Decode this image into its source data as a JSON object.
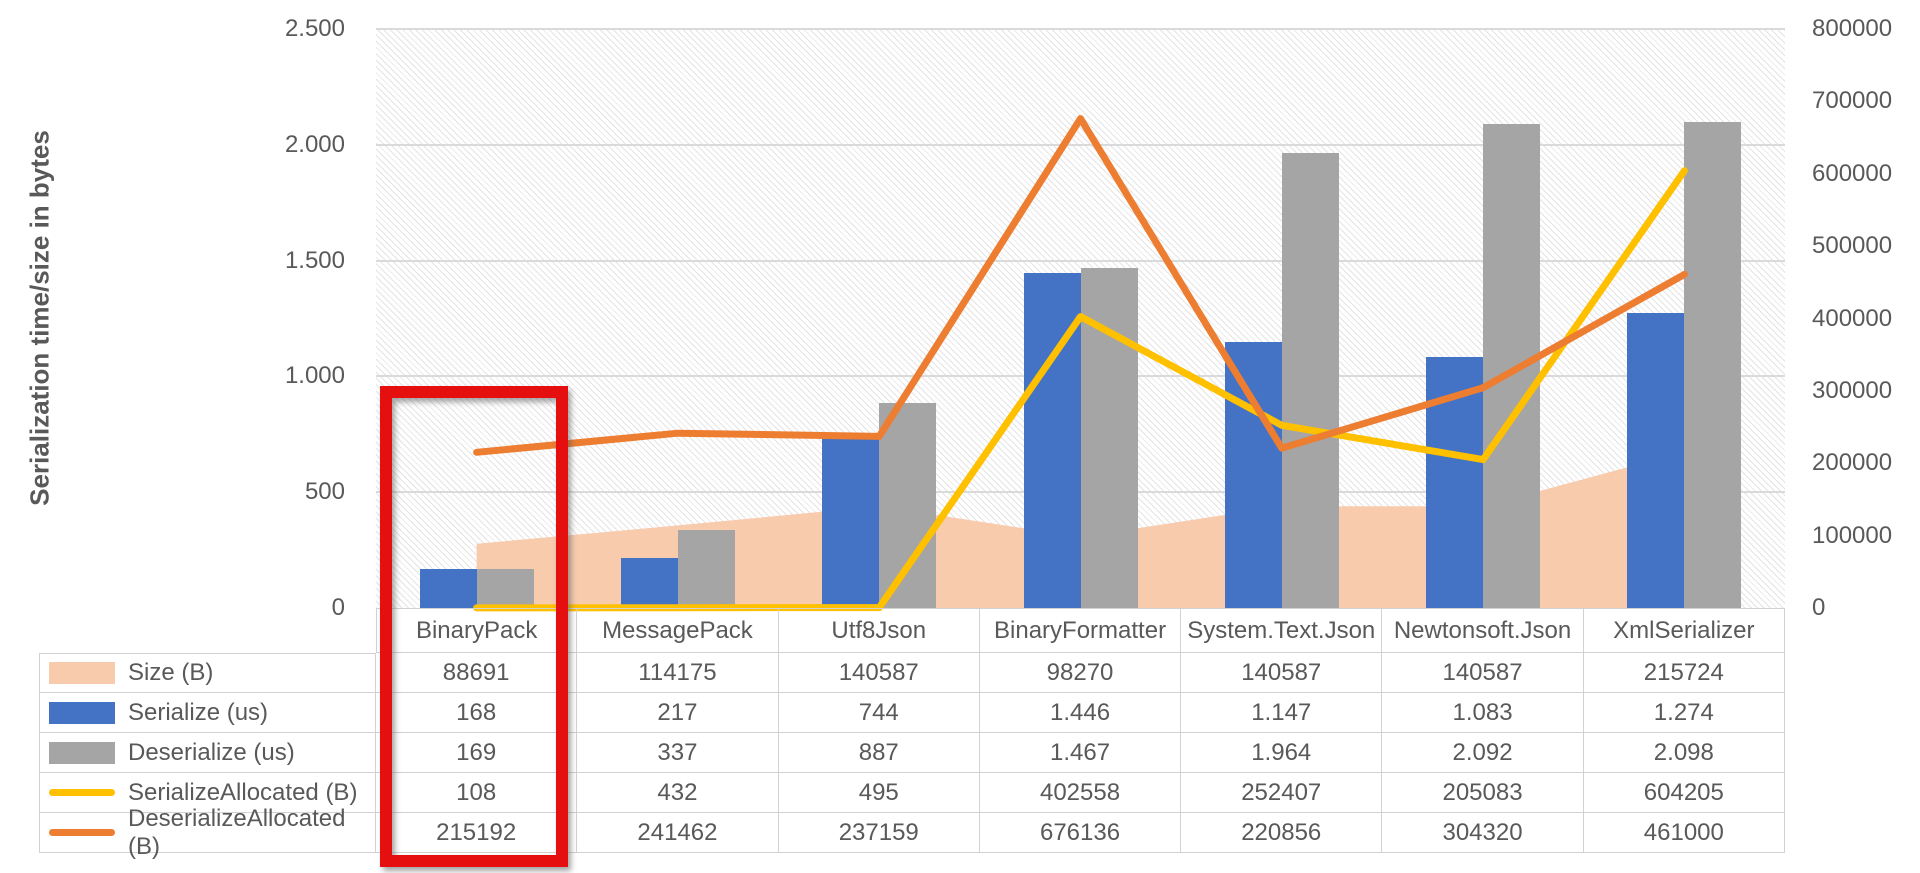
{
  "chart": {
    "y_axis_title": "Serialization time/size in bytes",
    "left_axis": {
      "ticks": [
        "2.500",
        "2.000",
        "1.500",
        "1.000",
        "500",
        "0"
      ]
    },
    "right_axis": {
      "ticks": [
        "800000",
        "700000",
        "600000",
        "500000",
        "400000",
        "300000",
        "200000",
        "100000",
        "0"
      ]
    },
    "highlight": {
      "category": "BinaryPack",
      "color": "#e60f0f"
    }
  },
  "chart_data": {
    "type": "combo",
    "categories": [
      "BinaryPack",
      "MessagePack",
      "Utf8Json",
      "BinaryFormatter",
      "System.Text.Json",
      "Newtonsoft.Json",
      "XmlSerializer"
    ],
    "series": [
      {
        "name": "Size (B)",
        "type": "area",
        "axis": "right",
        "color": "#f8cbad",
        "values": [
          88691,
          114175,
          140587,
          98270,
          140587,
          140587,
          215724
        ],
        "display": [
          "88691",
          "114175",
          "140587",
          "98270",
          "140587",
          "140587",
          "215724"
        ]
      },
      {
        "name": "Serialize (us)",
        "type": "bar",
        "axis": "left",
        "color": "#4472c4",
        "values": [
          168,
          217,
          744,
          1446,
          1147,
          1083,
          1274
        ],
        "display": [
          "168",
          "217",
          "744",
          "1.446",
          "1.147",
          "1.083",
          "1.274"
        ]
      },
      {
        "name": "Deserialize (us)",
        "type": "bar",
        "axis": "left",
        "color": "#a5a5a5",
        "values": [
          169,
          337,
          887,
          1467,
          1964,
          2092,
          2098
        ],
        "display": [
          "169",
          "337",
          "887",
          "1.467",
          "1.964",
          "2.092",
          "2.098"
        ]
      },
      {
        "name": "SerializeAllocated (B)",
        "type": "line",
        "axis": "right",
        "color": "#ffc000",
        "values": [
          108,
          432,
          495,
          402558,
          252407,
          205083,
          604205
        ],
        "display": [
          "108",
          "432",
          "495",
          "402558",
          "252407",
          "205083",
          "604205"
        ]
      },
      {
        "name": "DeserializeAllocated (B)",
        "type": "line",
        "axis": "right",
        "color": "#ed7d31",
        "values": [
          215192,
          241462,
          237159,
          676136,
          220856,
          304320,
          461000
        ],
        "display": [
          "215192",
          "241462",
          "237159",
          "676136",
          "220856",
          "304320",
          "461000"
        ]
      }
    ],
    "title": "",
    "xlabel": "",
    "ylabel": "Serialization time/size in bytes",
    "left_ylim": [
      0,
      2500
    ],
    "right_ylim": [
      0,
      800000
    ],
    "grid": true,
    "legend_position": "table-left",
    "plot_background": "diagonal-hatch"
  }
}
